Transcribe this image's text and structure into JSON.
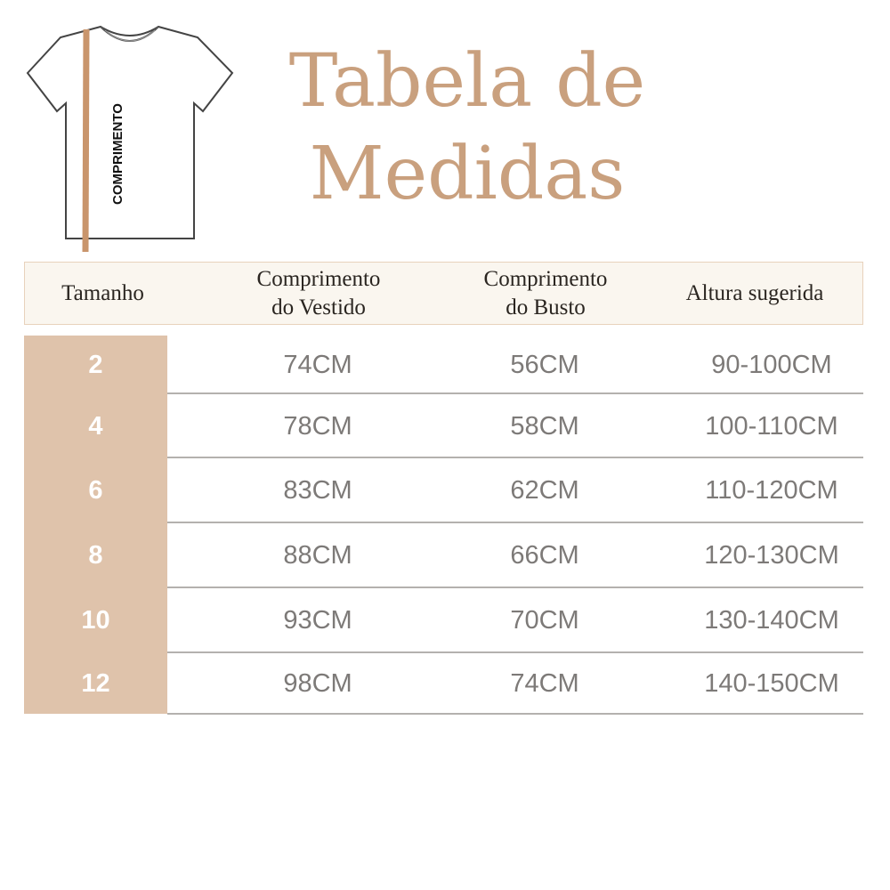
{
  "illustration": {
    "label": "COMPRIMENTO",
    "accent_color": "#c9956c"
  },
  "title": {
    "line1": "Tabela de",
    "line2": "Medidas",
    "color": "#c9a07e"
  },
  "table": {
    "headers": [
      {
        "line1": "Tamanho",
        "line2": ""
      },
      {
        "line1": "Comprimento",
        "line2": "do Vestido"
      },
      {
        "line1": "Comprimento",
        "line2": "do Busto"
      },
      {
        "line1": "Altura sugerida",
        "line2": ""
      }
    ],
    "rows": [
      {
        "size": "2",
        "dress": "74CM",
        "bust": "56CM",
        "height": "90-100CM"
      },
      {
        "size": "4",
        "dress": "78CM",
        "bust": "58CM",
        "height": "100-110CM"
      },
      {
        "size": "6",
        "dress": "83CM",
        "bust": "62CM",
        "height": "110-120CM"
      },
      {
        "size": "8",
        "dress": "88CM",
        "bust": "66CM",
        "height": "120-130CM"
      },
      {
        "size": "10",
        "dress": "93CM",
        "bust": "70CM",
        "height": "130-140CM"
      },
      {
        "size": "12",
        "dress": "98CM",
        "bust": "74CM",
        "height": "140-150CM"
      }
    ]
  }
}
